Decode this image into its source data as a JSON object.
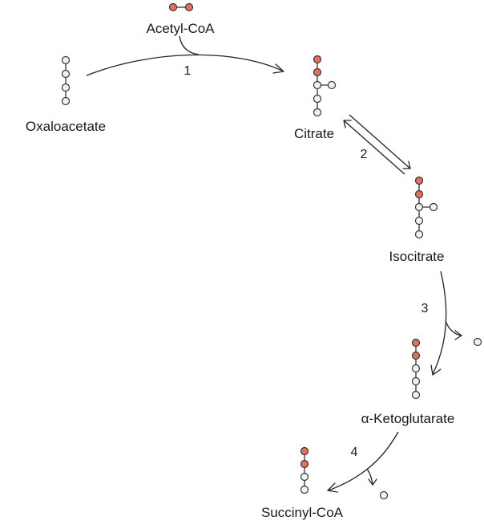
{
  "colors": {
    "carbon_atom": "#f2f2f2",
    "acetyl_carbon_atom": "#e8705a",
    "outline": "#333333"
  },
  "compounds": {
    "acetyl_coa": "Acetyl-CoA",
    "oxaloacetate": "Oxaloacetate",
    "citrate": "Citrate",
    "isocitrate": "Isocitrate",
    "alpha_ketoglutarate": "α-Ketoglutarate",
    "succinyl_coa": "Succinyl-CoA"
  },
  "steps": {
    "step1": "1",
    "step2": "2",
    "step3": "3",
    "step4": "4"
  }
}
